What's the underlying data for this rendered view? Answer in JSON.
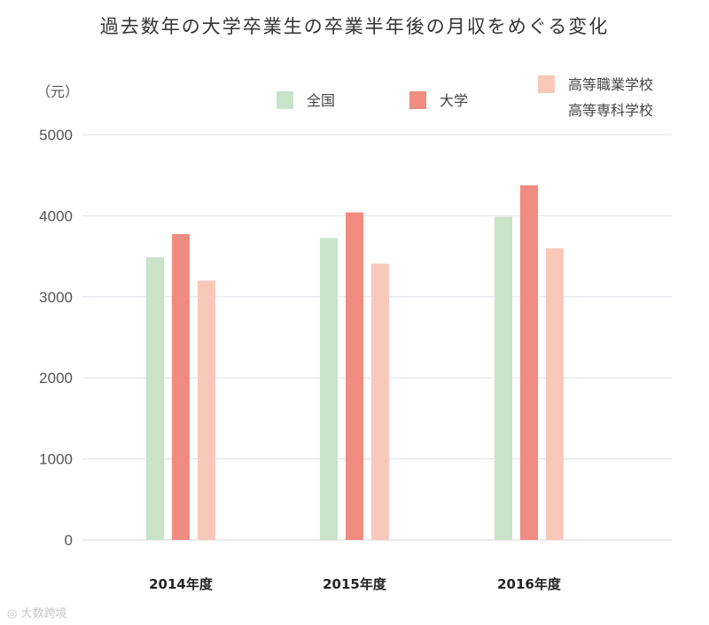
{
  "chart_data": {
    "type": "bar",
    "title": "過去数年の大学卒業生の卒業半年後の月収をめぐる変化",
    "ylabel": "（元）",
    "ylim": [
      0,
      5000
    ],
    "yticks": [
      0,
      1000,
      2000,
      3000,
      4000,
      5000
    ],
    "grid": true,
    "legend_position": "top",
    "categories": [
      "2014年度",
      "2015年度",
      "2016年度"
    ],
    "series": [
      {
        "name": "全国",
        "color": "#c8e3c8",
        "values": [
          3487,
          3726,
          3988
        ]
      },
      {
        "name": "大学",
        "color": "#ef8b80",
        "values": [
          3773,
          4042,
          4376
        ]
      },
      {
        "name": [
          "高等職業学校",
          "高等専科学校"
        ],
        "color": "#f8c9bb",
        "values": [
          3200,
          3409,
          3599
        ]
      }
    ]
  },
  "watermark": "大数跨境"
}
